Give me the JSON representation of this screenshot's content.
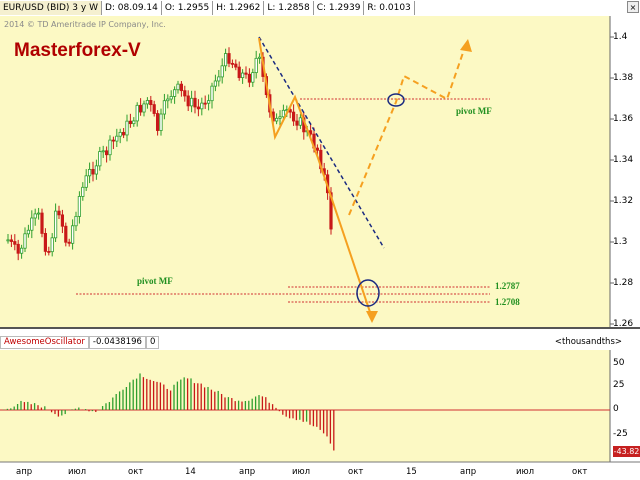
{
  "header": {
    "symbol": "EUR/USD (BID) 3 y W",
    "date": "D: 08.09.14",
    "open": "O: 1.2955",
    "high": "H: 1.2962",
    "low": "L: 1.2858",
    "close": "C: 1.2939",
    "range": "R: 0.0103",
    "close_button": "×"
  },
  "copyright": "2014 © TD Ameritrade IP Company, Inc.",
  "brand": "Masterforex-V",
  "price_axis": [
    "1.4",
    "1.38",
    "1.36",
    "1.34",
    "1.32",
    "1.3",
    "1.28",
    "1.26"
  ],
  "annotations": {
    "pivot_top": "pivot MF",
    "pivot_bottom": "pivot MF",
    "level_1": "1.2787",
    "level_2": "1.2708"
  },
  "oscillator": {
    "name": "AwesomeOscillator",
    "value": "-0.0438196",
    "param": "0",
    "units": "<thousandths>",
    "axis": [
      "50",
      "25",
      "0",
      "-25"
    ],
    "current": "-43.82"
  },
  "x_axis": [
    "апр",
    "июл",
    "окт",
    "14",
    "апр",
    "июл",
    "окт",
    "15",
    "апр",
    "июл",
    "окт"
  ],
  "colors": {
    "chart_bg": "#fcf9c4",
    "bull": "#2e9e2e",
    "bear": "#c81818",
    "pivot_line": "#d03030",
    "trend_line": "#1a2a80",
    "forecast": "#f5a020"
  }
}
